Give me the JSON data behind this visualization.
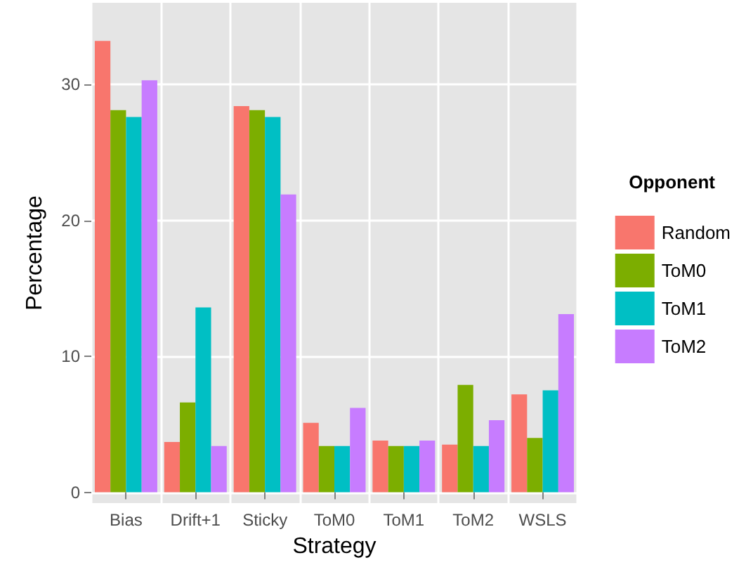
{
  "chart_data": {
    "type": "bar",
    "xlabel": "Strategy",
    "ylabel": "Percentage",
    "legend_title": "Opponent",
    "categories": [
      "Bias",
      "Drift+1",
      "Sticky",
      "ToM0",
      "ToM1",
      "ToM2",
      "WSLS"
    ],
    "series": [
      {
        "name": "Random",
        "color": "#f8766d",
        "values": [
          33.2,
          3.7,
          28.4,
          5.1,
          3.8,
          3.5,
          7.2
        ]
      },
      {
        "name": "ToM0",
        "color": "#7cae00",
        "values": [
          28.1,
          6.6,
          28.1,
          3.4,
          3.4,
          7.9,
          4.0
        ]
      },
      {
        "name": "ToM1",
        "color": "#00bfc4",
        "values": [
          27.6,
          13.6,
          27.6,
          3.4,
          3.4,
          3.4,
          7.5
        ]
      },
      {
        "name": "ToM2",
        "color": "#c77cff",
        "values": [
          30.3,
          3.4,
          21.9,
          6.2,
          3.8,
          5.3,
          13.1
        ]
      }
    ],
    "ylim": [
      -0.8,
      36
    ],
    "yticks": [
      0,
      10,
      20,
      30
    ],
    "grid": true,
    "legend": "right"
  }
}
